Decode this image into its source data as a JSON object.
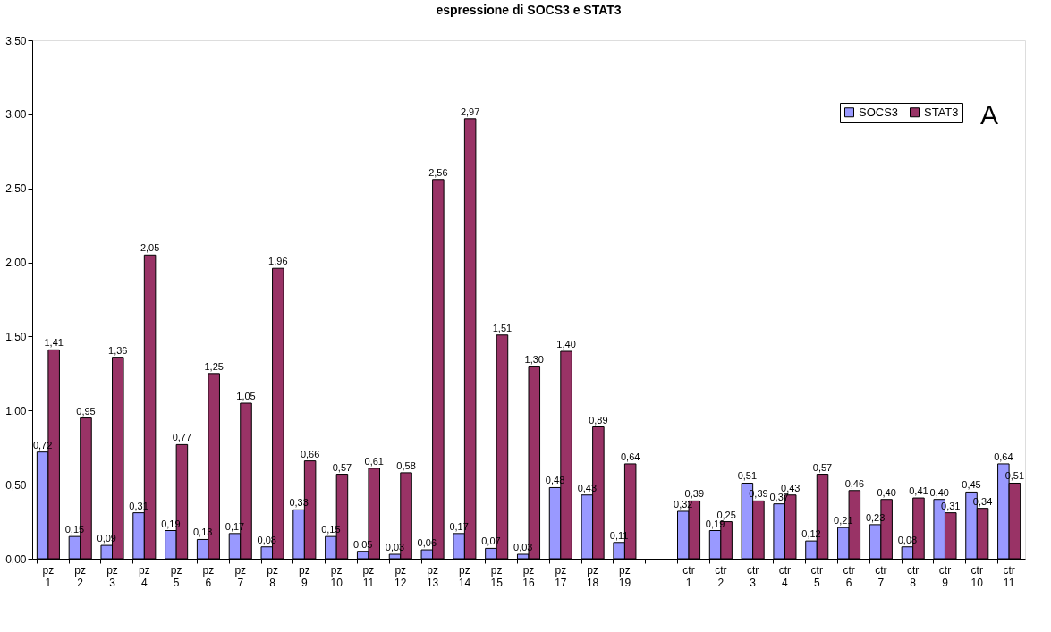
{
  "chart_data": {
    "type": "bar",
    "title": "espressione di SOCS3 e STAT3",
    "categories": [
      "pz 1",
      "pz 2",
      "pz 3",
      "pz 4",
      "pz 5",
      "pz 6",
      "pz 7",
      "pz 8",
      "pz 9",
      "pz 10",
      "pz 11",
      "pz 12",
      "pz 13",
      "pz 14",
      "pz 15",
      "pz 16",
      "pz 17",
      "pz 18",
      "pz 19",
      null,
      "ctr 1",
      "ctr 2",
      "ctr 3",
      "ctr 4",
      "ctr 5",
      "ctr 6",
      "ctr 7",
      "ctr 8",
      "ctr 9",
      "ctr 10",
      "ctr 11"
    ],
    "series": [
      {
        "name": "SOCS3",
        "color": "#9999ff",
        "values": [
          0.72,
          0.15,
          0.09,
          0.31,
          0.19,
          0.13,
          0.17,
          0.08,
          0.33,
          0.15,
          0.05,
          0.03,
          0.06,
          0.17,
          0.07,
          0.03,
          0.48,
          0.43,
          0.11,
          null,
          0.32,
          0.19,
          0.51,
          0.37,
          0.12,
          0.21,
          0.23,
          0.08,
          0.4,
          0.45,
          0.64
        ],
        "value_labels": [
          "0,72",
          "0,15",
          "0,09",
          "0,31",
          "0,19",
          "0,13",
          "0,17",
          "0,08",
          "0,33",
          "0,15",
          "0,05",
          "0,03",
          "0,06",
          "0,17",
          "0,07",
          "0,03",
          "0,48",
          "0,43",
          "0,11",
          null,
          "0,32",
          "0,19",
          "0,51",
          "0,37",
          "0,12",
          "0,21",
          "0,23",
          "0,08",
          "0,40",
          "0,45",
          "0,64"
        ]
      },
      {
        "name": "STAT3",
        "color": "#993366",
        "values": [
          1.41,
          0.95,
          1.36,
          2.05,
          0.77,
          1.25,
          1.05,
          1.96,
          0.66,
          0.57,
          0.61,
          0.58,
          2.56,
          2.97,
          1.51,
          1.3,
          1.4,
          0.89,
          0.64,
          null,
          0.39,
          0.25,
          0.39,
          0.43,
          0.57,
          0.46,
          0.4,
          0.41,
          0.31,
          0.34,
          0.51
        ],
        "value_labels": [
          "1,41",
          "0,95",
          "1,36",
          "2,05",
          "0,77",
          "1,25",
          "1,05",
          "1,96",
          "0,66",
          "0,57",
          "0,61",
          "0,58",
          "2,56",
          "2,97",
          "1,51",
          "1,30",
          "1,40",
          "0,89",
          "0,64",
          null,
          "0,39",
          "0,25",
          "0,39",
          "0,43",
          "0,57",
          "0,46",
          "0,40",
          "0,41",
          "0,31",
          "0,34",
          "0,51"
        ]
      }
    ],
    "ylim": [
      0,
      3.5
    ],
    "yticks": [
      {
        "value": 0,
        "label": "0,00"
      },
      {
        "value": 0.5,
        "label": "0,50"
      },
      {
        "value": 1,
        "label": "1,00"
      },
      {
        "value": 1.5,
        "label": "1,50"
      },
      {
        "value": 2,
        "label": "2,00"
      },
      {
        "value": 2.5,
        "label": "2,50"
      },
      {
        "value": 3,
        "label": "3,00"
      },
      {
        "value": 3.5,
        "label": "3,50"
      }
    ],
    "annotations": [
      "A"
    ],
    "legend": "top right",
    "grid": false
  }
}
